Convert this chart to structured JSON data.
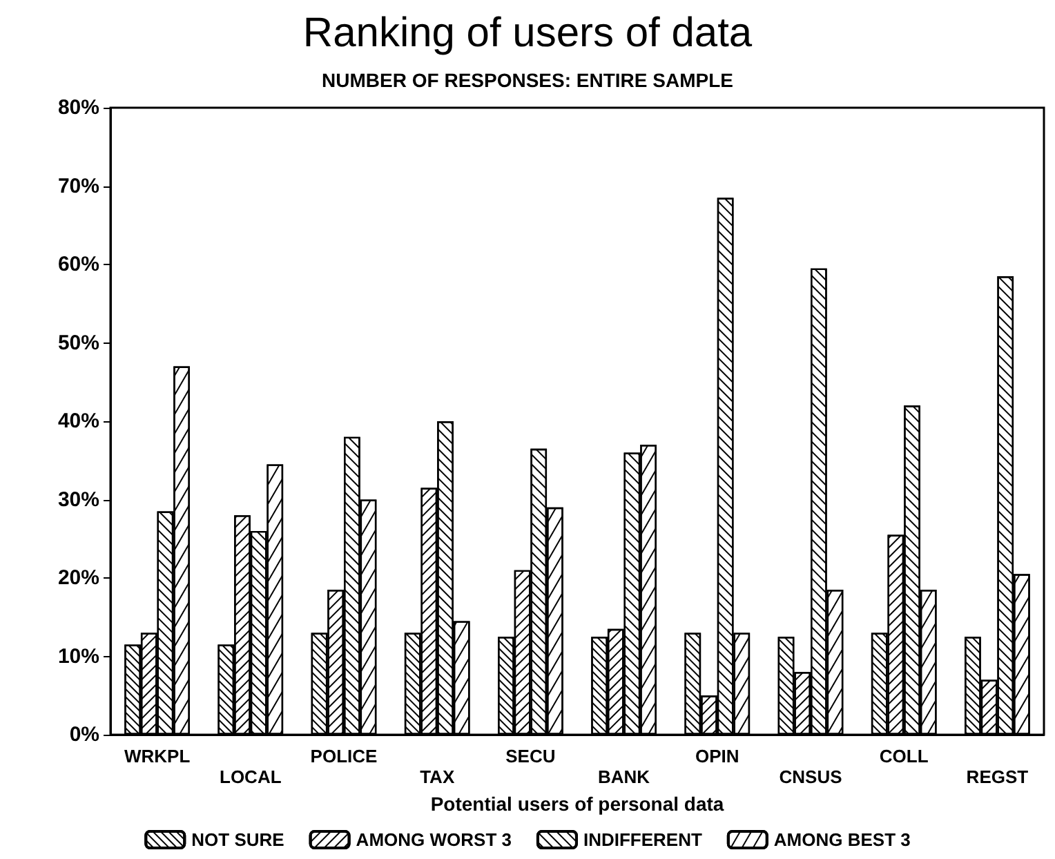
{
  "chart_data": {
    "type": "bar",
    "title": "Ranking of users of data",
    "subtitle": "NUMBER OF RESPONSES: ENTIRE SAMPLE",
    "xlabel": "Potential users of personal data",
    "categories": [
      "WRKPL",
      "LOCAL",
      "POLICE",
      "TAX",
      "SECU",
      "BANK",
      "OPIN",
      "CNSUS",
      "COLL",
      "REGST"
    ],
    "series": [
      {
        "name": "NOT SURE",
        "color": "#ffffff",
        "values": [
          11.5,
          11.5,
          13,
          13,
          12.5,
          12.5,
          13,
          12.5,
          13,
          12.5
        ]
      },
      {
        "name": "AMONG WORST 3",
        "color": "#ffffff",
        "values": [
          13,
          28,
          18.5,
          31.5,
          21,
          13.5,
          5,
          8,
          25.5,
          7
        ]
      },
      {
        "name": "INDIFFERENT",
        "color": "#ffffff",
        "values": [
          28.5,
          26,
          38,
          40,
          36.5,
          36,
          68.5,
          59.5,
          42,
          58.5
        ]
      },
      {
        "name": "AMONG BEST 3",
        "color": "#ffffff",
        "values": [
          47,
          34.5,
          30,
          14.5,
          29,
          37,
          13,
          18.5,
          18.5,
          20.5
        ]
      }
    ],
    "ylim": [
      0,
      80
    ],
    "yticks": [
      {
        "value": 0,
        "label": "0%"
      },
      {
        "value": 10,
        "label": "10%"
      },
      {
        "value": 20,
        "label": "20%"
      },
      {
        "value": 30,
        "label": "30%"
      },
      {
        "value": 40,
        "label": "40%"
      },
      {
        "value": 50,
        "label": "50%"
      },
      {
        "value": 60,
        "label": "60%"
      },
      {
        "value": 70,
        "label": "70%"
      },
      {
        "value": 80,
        "label": "80%"
      }
    ],
    "grid": false,
    "legend": "bottom"
  }
}
